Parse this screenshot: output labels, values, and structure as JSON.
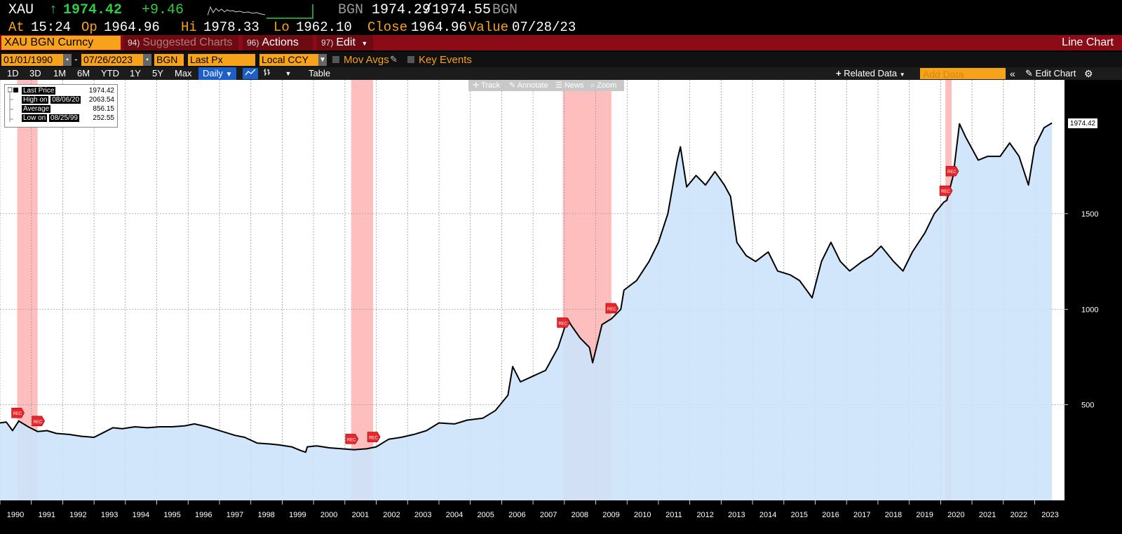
{
  "quote": {
    "ticker": "XAU",
    "direction_icon": "up-arrow-icon",
    "last": "1974.42",
    "change": "+9.46",
    "source": "BGN",
    "bid": "1974.29",
    "ask": "1974.55",
    "source2": "BGN",
    "up_color": "#2ecc40"
  },
  "stats": {
    "at_label": "At",
    "at_value": "15:24",
    "op_label": "Op",
    "op_value": "1964.96",
    "hi_label": "Hi",
    "hi_value": "1978.33",
    "lo_label": "Lo",
    "lo_value": "1962.10",
    "close_label": "Close",
    "close_value": "1964.96",
    "value_label": "Value",
    "value_value": "07/28/23"
  },
  "toolbar": {
    "security": "XAU BGN Curncy",
    "suggested_num": "94)",
    "suggested_label": "Suggested Charts",
    "actions_num": "96)",
    "actions_label": "Actions",
    "edit_num": "97)",
    "edit_label": "Edit",
    "chart_type": "Line Chart"
  },
  "settings": {
    "start_date": "01/01/1990",
    "end_date": "07/26/2023",
    "pricing_source": "BGN",
    "field": "Last Px",
    "currency": "Local CCY",
    "mov_avgs": "Mov Avgs",
    "key_events": "Key Events"
  },
  "periods": {
    "items": [
      "1D",
      "3D",
      "1M",
      "6M",
      "YTD",
      "1Y",
      "5Y",
      "Max"
    ],
    "frequency": "Daily",
    "table": "Table",
    "related": "Related Data",
    "add_data_placeholder": "Add Data",
    "edit_chart": "Edit Chart"
  },
  "chart_toolbar": {
    "track": "Track",
    "annotate": "Annotate",
    "news": "News",
    "zoom": "Zoom"
  },
  "legend": {
    "last_label": "Last Price",
    "last_value": "1974.42",
    "high_label": "High on",
    "high_date": "08/06/20",
    "high_value": "2063.54",
    "avg_label": "Average",
    "avg_value": "856.15",
    "low_label": "Low on",
    "low_date": "08/25/99",
    "low_value": "252.55"
  },
  "chart_data": {
    "type": "area",
    "title": "",
    "xlabel": "",
    "ylabel": "",
    "ylim": [
      0,
      2200
    ],
    "yticks": [
      500,
      1000,
      1500
    ],
    "grid": true,
    "years": [
      "1990",
      "1991",
      "1992",
      "1993",
      "1994",
      "1995",
      "1996",
      "1997",
      "1998",
      "1999",
      "2000",
      "2001",
      "2002",
      "2003",
      "2004",
      "2005",
      "2006",
      "2007",
      "2008",
      "2009",
      "2010",
      "2011",
      "2012",
      "2013",
      "2014",
      "2015",
      "2016",
      "2017",
      "2018",
      "2019",
      "2020",
      "2021",
      "2022",
      "2023"
    ],
    "series": [
      {
        "x": [
          1990.0,
          1990.2,
          1990.4,
          1990.6,
          1990.9,
          1991.2,
          1991.5,
          1991.8,
          1992.2,
          1992.6,
          1993.0,
          1993.3,
          1993.6,
          1993.9,
          1994.3,
          1994.7,
          1995.1,
          1995.5,
          1995.9,
          1996.2,
          1996.6,
          1996.9,
          1997.2,
          1997.5,
          1997.8,
          1998.2,
          1998.6,
          1998.9,
          1999.3,
          1999.6,
          1999.75,
          1999.8,
          2000.1,
          2000.5,
          2000.9,
          2001.3,
          2001.7,
          2002.0,
          2002.4,
          2002.8,
          2003.2,
          2003.6,
          2004.0,
          2004.5,
          2004.9,
          2005.4,
          2005.8,
          2006.2,
          2006.35,
          2006.6,
          2007.0,
          2007.4,
          2007.8,
          2008.1,
          2008.2,
          2008.5,
          2008.8,
          2008.9,
          2009.2,
          2009.5,
          2009.8,
          2009.9,
          2010.3,
          2010.7,
          2011.0,
          2011.3,
          2011.6,
          2011.7,
          2011.9,
          2012.2,
          2012.5,
          2012.8,
          2013.1,
          2013.3,
          2013.5,
          2013.8,
          2014.1,
          2014.5,
          2014.8,
          2015.2,
          2015.5,
          2015.9,
          2016.2,
          2016.5,
          2016.8,
          2017.1,
          2017.5,
          2017.8,
          2018.1,
          2018.5,
          2018.8,
          2019.1,
          2019.5,
          2019.8,
          2020.1,
          2020.2,
          2020.4,
          2020.6,
          2020.8,
          2021.2,
          2021.5,
          2021.9,
          2022.2,
          2022.5,
          2022.8,
          2023.0,
          2023.3,
          2023.55
        ],
        "y": [
          405,
          410,
          365,
          415,
          385,
          360,
          365,
          350,
          345,
          335,
          330,
          355,
          380,
          375,
          385,
          380,
          385,
          385,
          390,
          400,
          385,
          370,
          355,
          340,
          330,
          300,
          295,
          290,
          280,
          260,
          252,
          280,
          285,
          275,
          270,
          265,
          270,
          280,
          320,
          330,
          345,
          365,
          405,
          400,
          420,
          430,
          470,
          550,
          700,
          620,
          650,
          680,
          800,
          950,
          920,
          850,
          800,
          720,
          920,
          950,
          1000,
          1100,
          1150,
          1250,
          1350,
          1500,
          1780,
          1850,
          1640,
          1700,
          1650,
          1720,
          1650,
          1590,
          1350,
          1280,
          1250,
          1300,
          1200,
          1180,
          1150,
          1060,
          1250,
          1350,
          1250,
          1200,
          1250,
          1280,
          1330,
          1250,
          1200,
          1300,
          1400,
          1500,
          1560,
          1570,
          1700,
          1970,
          1900,
          1780,
          1800,
          1800,
          1870,
          1800,
          1650,
          1850,
          1950,
          1974.42
        ]
      }
    ],
    "recession_bands": [
      [
        1990.55,
        1991.2
      ],
      [
        2001.2,
        2001.9
      ],
      [
        2007.95,
        2009.5
      ],
      [
        2020.15,
        2020.35
      ]
    ],
    "recession_label": "REC",
    "area_color": "#cce3fa",
    "line_color": "#000000",
    "band_color": "#ffb3b3"
  }
}
